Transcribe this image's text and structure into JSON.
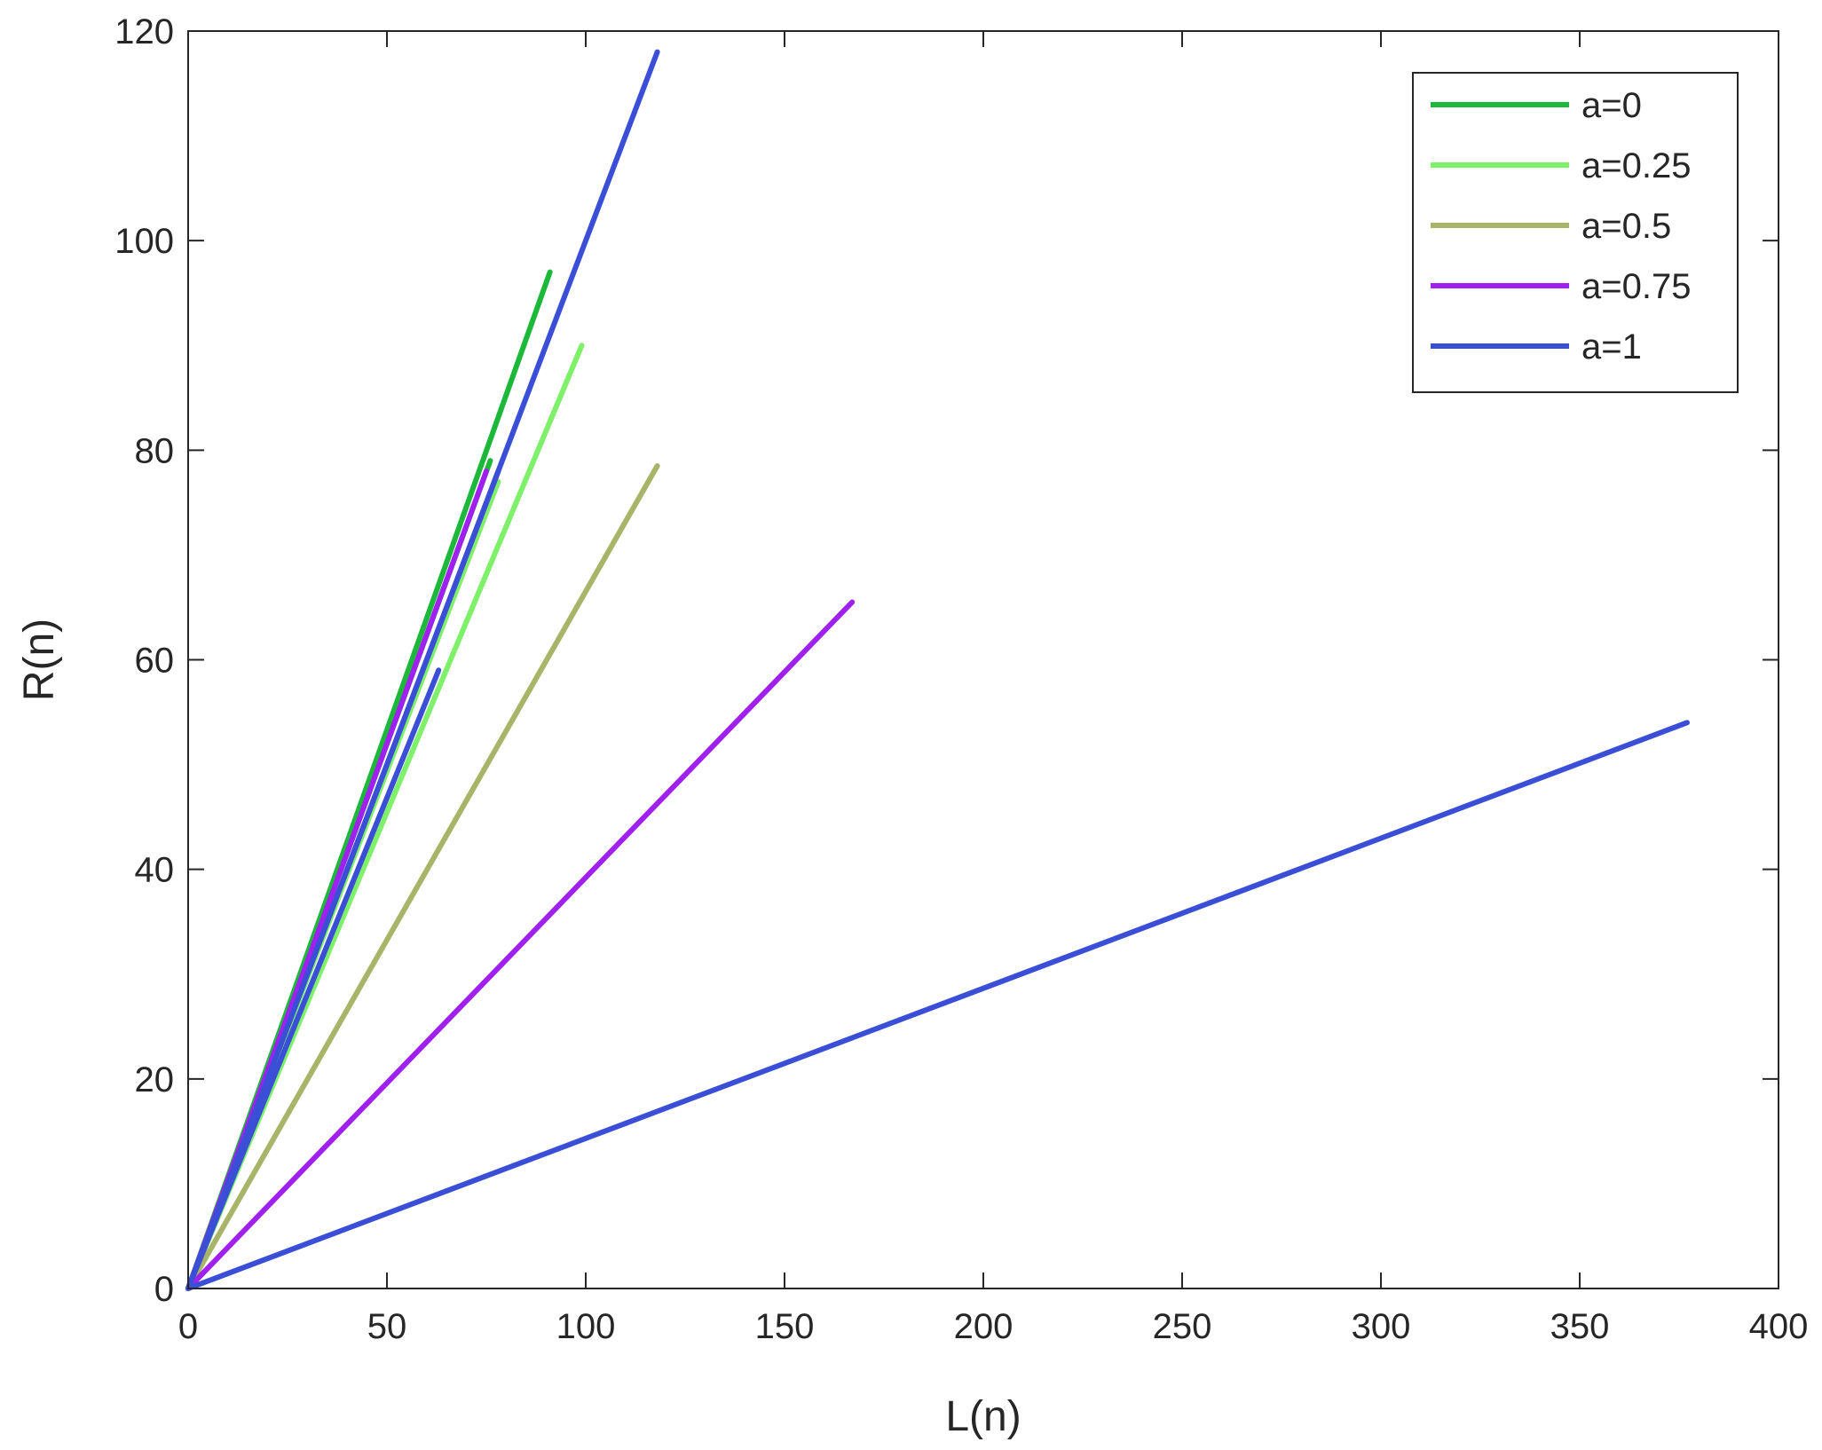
{
  "chart_data": {
    "type": "line",
    "xlabel": "L(n)",
    "ylabel": "R(n)",
    "xlim": [
      0,
      400
    ],
    "ylim": [
      0,
      120
    ],
    "xticks": [
      0,
      50,
      100,
      150,
      200,
      250,
      300,
      350,
      400
    ],
    "yticks": [
      0,
      20,
      40,
      60,
      80,
      100,
      120
    ],
    "grid": false,
    "legend_position": "top-right",
    "colors": {
      "axis": "#262626",
      "background": "#ffffff"
    },
    "series": [
      {
        "name": "a=0",
        "color": "#1db83a",
        "lines": [
          {
            "x": [
              0,
              91
            ],
            "y": [
              0,
              97
            ]
          },
          {
            "x": [
              0,
              76
            ],
            "y": [
              0,
              79
            ]
          }
        ]
      },
      {
        "name": "a=0.25",
        "color": "#7ef06a",
        "lines": [
          {
            "x": [
              0,
              99
            ],
            "y": [
              0,
              90
            ]
          },
          {
            "x": [
              0,
              78
            ],
            "y": [
              0,
              77
            ]
          }
        ]
      },
      {
        "name": "a=0.5",
        "color": "#a8b468",
        "lines": [
          {
            "x": [
              0,
              118
            ],
            "y": [
              0,
              78.5
            ]
          }
        ]
      },
      {
        "name": "a=0.75",
        "color": "#a020f0",
        "lines": [
          {
            "x": [
              0,
              167
            ],
            "y": [
              0,
              65.5
            ]
          },
          {
            "x": [
              0,
              75
            ],
            "y": [
              0,
              78
            ]
          }
        ]
      },
      {
        "name": "a=1",
        "color": "#3a4fd6",
        "lines": [
          {
            "x": [
              0,
              118
            ],
            "y": [
              0,
              118
            ]
          },
          {
            "x": [
              0,
              78
            ],
            "y": [
              0,
              78
            ]
          },
          {
            "x": [
              0,
              63
            ],
            "y": [
              0,
              59
            ]
          },
          {
            "x": [
              0,
              377
            ],
            "y": [
              0,
              54
            ]
          }
        ]
      }
    ]
  }
}
